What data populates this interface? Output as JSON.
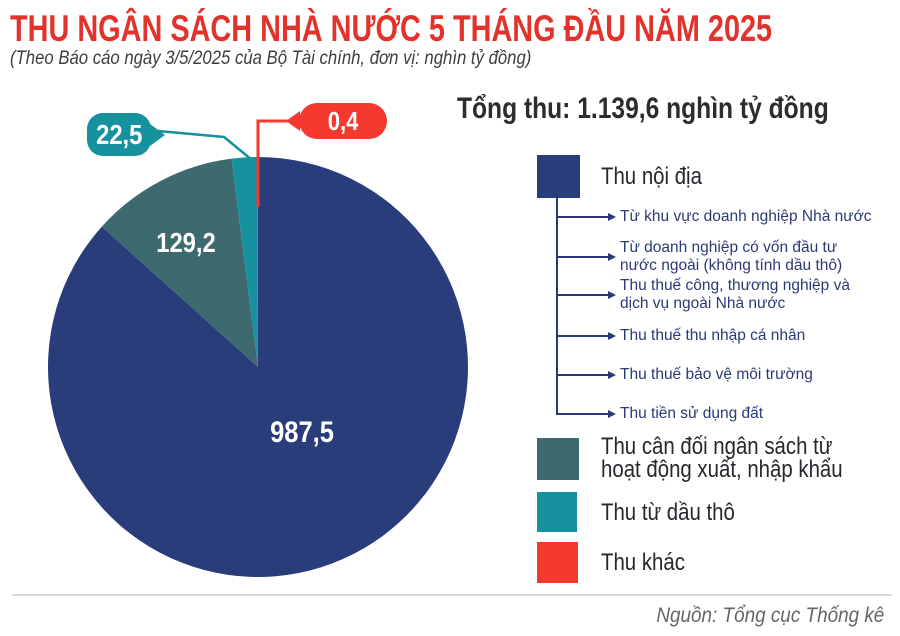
{
  "header": {
    "title": "THU NGÂN SÁCH NHÀ NƯỚC 5 THÁNG ĐẦU NĂM 2025",
    "subtitle": "(Theo Báo cáo ngày 3/5/2025 của Bộ Tài chính, đơn vị: nghìn tỷ đồng)"
  },
  "total_label": "Tổng thu: 1.139,6 nghìn tỷ đồng",
  "source": "Nguồn: Tổng cục Thống kê",
  "colors": {
    "title_red": "#e1332c",
    "navy": "#293d7b",
    "dark_teal": "#3d6a6e",
    "teal": "#16929e",
    "red": "#f5392f",
    "sub_item_text": "#2b3a74",
    "divider": "#d8d8d8",
    "source_text": "#666666"
  },
  "chart_data": {
    "type": "pie",
    "title": "Thu ngân sách nhà nước 5 tháng đầu năm 2025",
    "unit": "nghìn tỷ đồng",
    "total": 1139.6,
    "start_angle_deg": -90,
    "direction": "clockwise",
    "legend_position": "right",
    "slices": [
      {
        "label": "Thu nội địa",
        "value": 987.5,
        "display_value": "987,5",
        "color": "#293d7b"
      },
      {
        "label": "Thu cân đối ngân sách từ hoạt động xuất, nhập khẩu",
        "value": 129.2,
        "display_value": "129,2",
        "color": "#3d6a6e"
      },
      {
        "label": "Thu từ dầu thô",
        "value": 22.5,
        "display_value": "22,5",
        "color": "#16929e"
      },
      {
        "label": "Thu khác",
        "value": 0.4,
        "display_value": "0,4",
        "color": "#f5392f"
      }
    ]
  },
  "legend": {
    "items": [
      {
        "label": "Thu nội địa"
      },
      {
        "label": "Thu cân đối ngân sách từ\nhoạt động xuất, nhập khẩu"
      },
      {
        "label": "Thu từ dầu thô"
      },
      {
        "label": "Thu khác"
      }
    ],
    "thu_noi_dia_sub_items": [
      {
        "label": "Từ khu vực doanh nghiệp Nhà nước"
      },
      {
        "label": "Từ doanh nghiệp có vốn đầu tư\nnước ngoài (không tính dầu thô)"
      },
      {
        "label": "Thu thuế công, thương nghiệp và\ndịch vụ ngoài Nhà nước"
      },
      {
        "label": "Thu thuế thu nhập cá nhân"
      },
      {
        "label": "Thu thuế bảo vệ môi trường"
      },
      {
        "label": "Thu tiền sử dụng đất"
      }
    ]
  }
}
